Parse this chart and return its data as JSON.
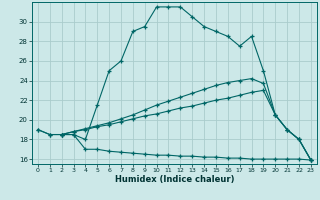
{
  "xlabel": "Humidex (Indice chaleur)",
  "bg_color": "#cce8e8",
  "grid_color": "#aacccc",
  "line_color": "#006666",
  "xlim": [
    -0.5,
    23.5
  ],
  "ylim": [
    15.5,
    32.0
  ],
  "yticks": [
    16,
    18,
    20,
    22,
    24,
    26,
    28,
    30
  ],
  "xticks": [
    0,
    1,
    2,
    3,
    4,
    5,
    6,
    7,
    8,
    9,
    10,
    11,
    12,
    13,
    14,
    15,
    16,
    17,
    18,
    19,
    20,
    21,
    22,
    23
  ],
  "line1_x": [
    0,
    1,
    2,
    3,
    4,
    5,
    6,
    7,
    8,
    9,
    10,
    11,
    12,
    13,
    14,
    15,
    16,
    17,
    18,
    19,
    20,
    21,
    22,
    23
  ],
  "line1_y": [
    19.0,
    18.5,
    18.5,
    18.5,
    17.0,
    17.0,
    16.8,
    16.7,
    16.6,
    16.5,
    16.4,
    16.4,
    16.3,
    16.3,
    16.2,
    16.2,
    16.1,
    16.1,
    16.0,
    16.0,
    16.0,
    16.0,
    16.0,
    15.9
  ],
  "line2_x": [
    2,
    3,
    4,
    5,
    6,
    7,
    8,
    9,
    10,
    11,
    12,
    13,
    14,
    15,
    16,
    17,
    18,
    19,
    20,
    21,
    22,
    23
  ],
  "line2_y": [
    18.5,
    18.8,
    19.0,
    19.3,
    19.5,
    19.8,
    20.1,
    20.4,
    20.6,
    20.9,
    21.2,
    21.4,
    21.7,
    22.0,
    22.2,
    22.5,
    22.8,
    23.0,
    20.5,
    19.0,
    18.0,
    15.9
  ],
  "line3_x": [
    2,
    3,
    4,
    5,
    6,
    7,
    8,
    9,
    10,
    11,
    12,
    13,
    14,
    15,
    16,
    17,
    18,
    19,
    20,
    21,
    22,
    23
  ],
  "line3_y": [
    18.5,
    18.8,
    19.1,
    19.4,
    19.7,
    20.1,
    20.5,
    21.0,
    21.5,
    21.9,
    22.3,
    22.7,
    23.1,
    23.5,
    23.8,
    24.0,
    24.2,
    23.7,
    20.5,
    19.0,
    18.0,
    15.9
  ],
  "line4_x": [
    0,
    1,
    2,
    3,
    4,
    5,
    6,
    7,
    8,
    9,
    10,
    11,
    12,
    13,
    14,
    15,
    16,
    17,
    18,
    19,
    20,
    21,
    22,
    23
  ],
  "line4_y": [
    19.0,
    18.5,
    18.5,
    18.5,
    18.0,
    21.5,
    25.0,
    26.0,
    29.0,
    29.5,
    31.5,
    31.5,
    31.5,
    30.5,
    29.5,
    29.0,
    28.5,
    27.5,
    28.5,
    25.0,
    20.5,
    19.0,
    18.0,
    15.9
  ]
}
